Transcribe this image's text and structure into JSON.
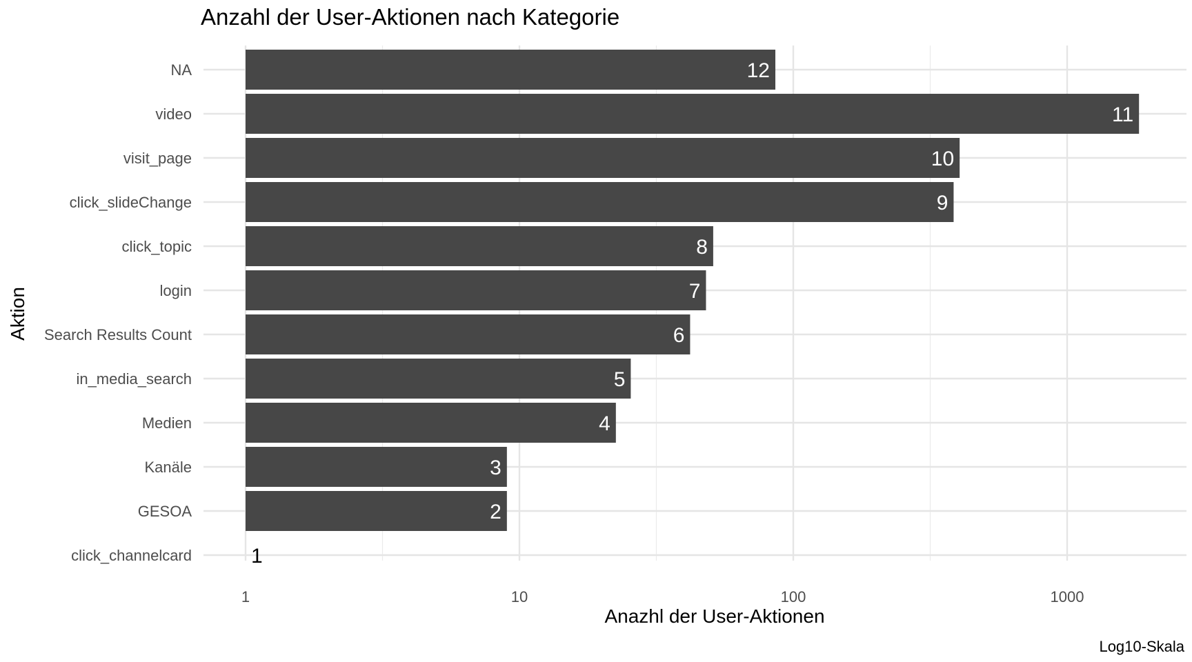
{
  "chart_data": {
    "type": "bar",
    "orientation": "horizontal",
    "title": "Anzahl der User-Aktionen nach Kategorie",
    "xlabel": "Anazhl der User-Aktionen",
    "ylabel": "Aktion",
    "caption": "Log10-Skala",
    "x_scale": "log10",
    "xlim": [
      0.85,
      3000
    ],
    "x_ticks": [
      1,
      10,
      100,
      1000
    ],
    "x_tick_labels": [
      "1",
      "10",
      "100",
      "1000"
    ],
    "grid": true,
    "categories": [
      "NA",
      "video",
      "visit_page",
      "click_slideChange",
      "click_topic",
      "login",
      "Search Results Count",
      "in_media_search",
      "Medien",
      "Kanäle",
      "GESOA",
      "click_channelcard"
    ],
    "values": [
      86,
      1830,
      405,
      385,
      51,
      48,
      42,
      25.5,
      22.5,
      9,
      9,
      1
    ],
    "labels": [
      "12",
      "11",
      "10",
      "9",
      "8",
      "7",
      "6",
      "5",
      "4",
      "3",
      "2",
      "1"
    ],
    "bar_color": "#474747",
    "label_color_inside": "#ffffff",
    "label_color_outside": "#000000"
  }
}
